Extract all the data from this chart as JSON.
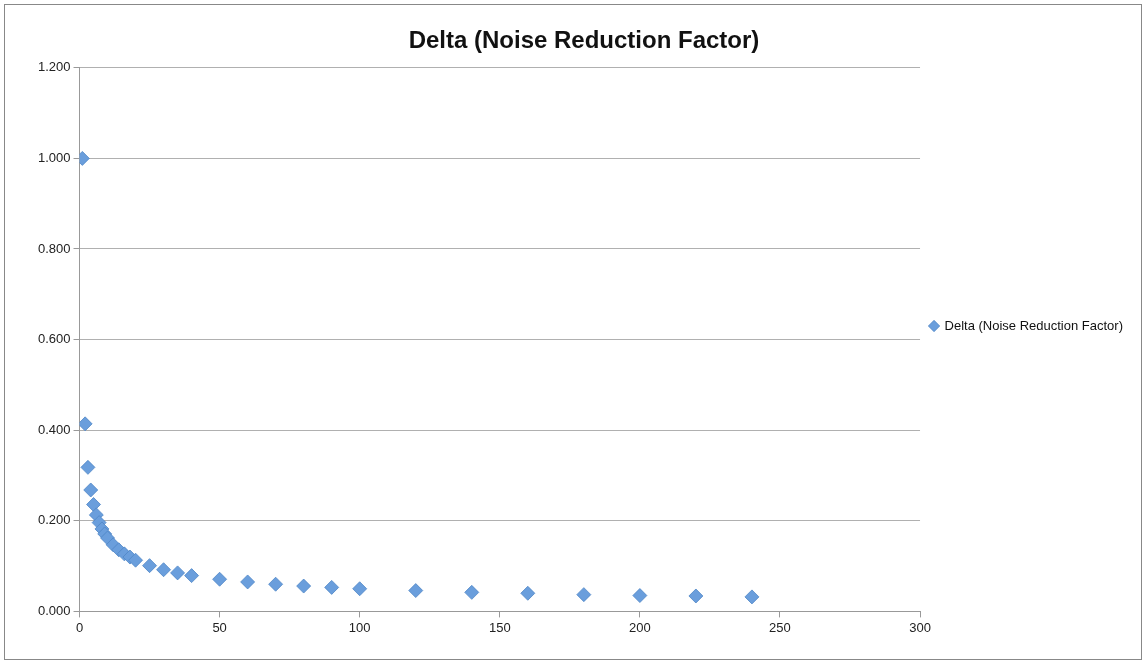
{
  "chart_data": {
    "type": "scatter",
    "title": "Delta (Noise Reduction Factor)",
    "series": [
      {
        "name": "Delta (Noise Reduction Factor)",
        "color": "#6a9edc",
        "x": [
          1,
          2,
          3,
          4,
          5,
          6,
          7,
          8,
          9,
          10,
          12,
          14,
          16,
          18,
          20,
          25,
          30,
          35,
          40,
          50,
          60,
          70,
          80,
          90,
          100,
          120,
          140,
          160,
          180,
          200,
          220,
          240
        ],
        "values": [
          1.0,
          0.414,
          0.318,
          0.268,
          0.236,
          0.213,
          0.196,
          0.182,
          0.171,
          0.162,
          0.147,
          0.136,
          0.127,
          0.12,
          0.113,
          0.101,
          0.092,
          0.085,
          0.079,
          0.071,
          0.065,
          0.06,
          0.056,
          0.053,
          0.05,
          0.046,
          0.042,
          0.04,
          0.037,
          0.035,
          0.034,
          0.032
        ]
      }
    ],
    "xlim": [
      0,
      300
    ],
    "xticks": [
      0,
      50,
      100,
      150,
      200,
      250,
      300
    ],
    "ylim": [
      0,
      1.2
    ],
    "yticks": [
      {
        "value": 0,
        "label": "0.000"
      },
      {
        "value": 0.2,
        "label": "0.200"
      },
      {
        "value": 0.4,
        "label": "0.400"
      },
      {
        "value": 0.6,
        "label": "0.600"
      },
      {
        "value": 0.8,
        "label": "0.800"
      },
      {
        "value": 1.0,
        "label": "1.000"
      },
      {
        "value": 1.2,
        "label": "1.200"
      }
    ],
    "grid": "y",
    "legend": "right",
    "marker": "diamond"
  }
}
